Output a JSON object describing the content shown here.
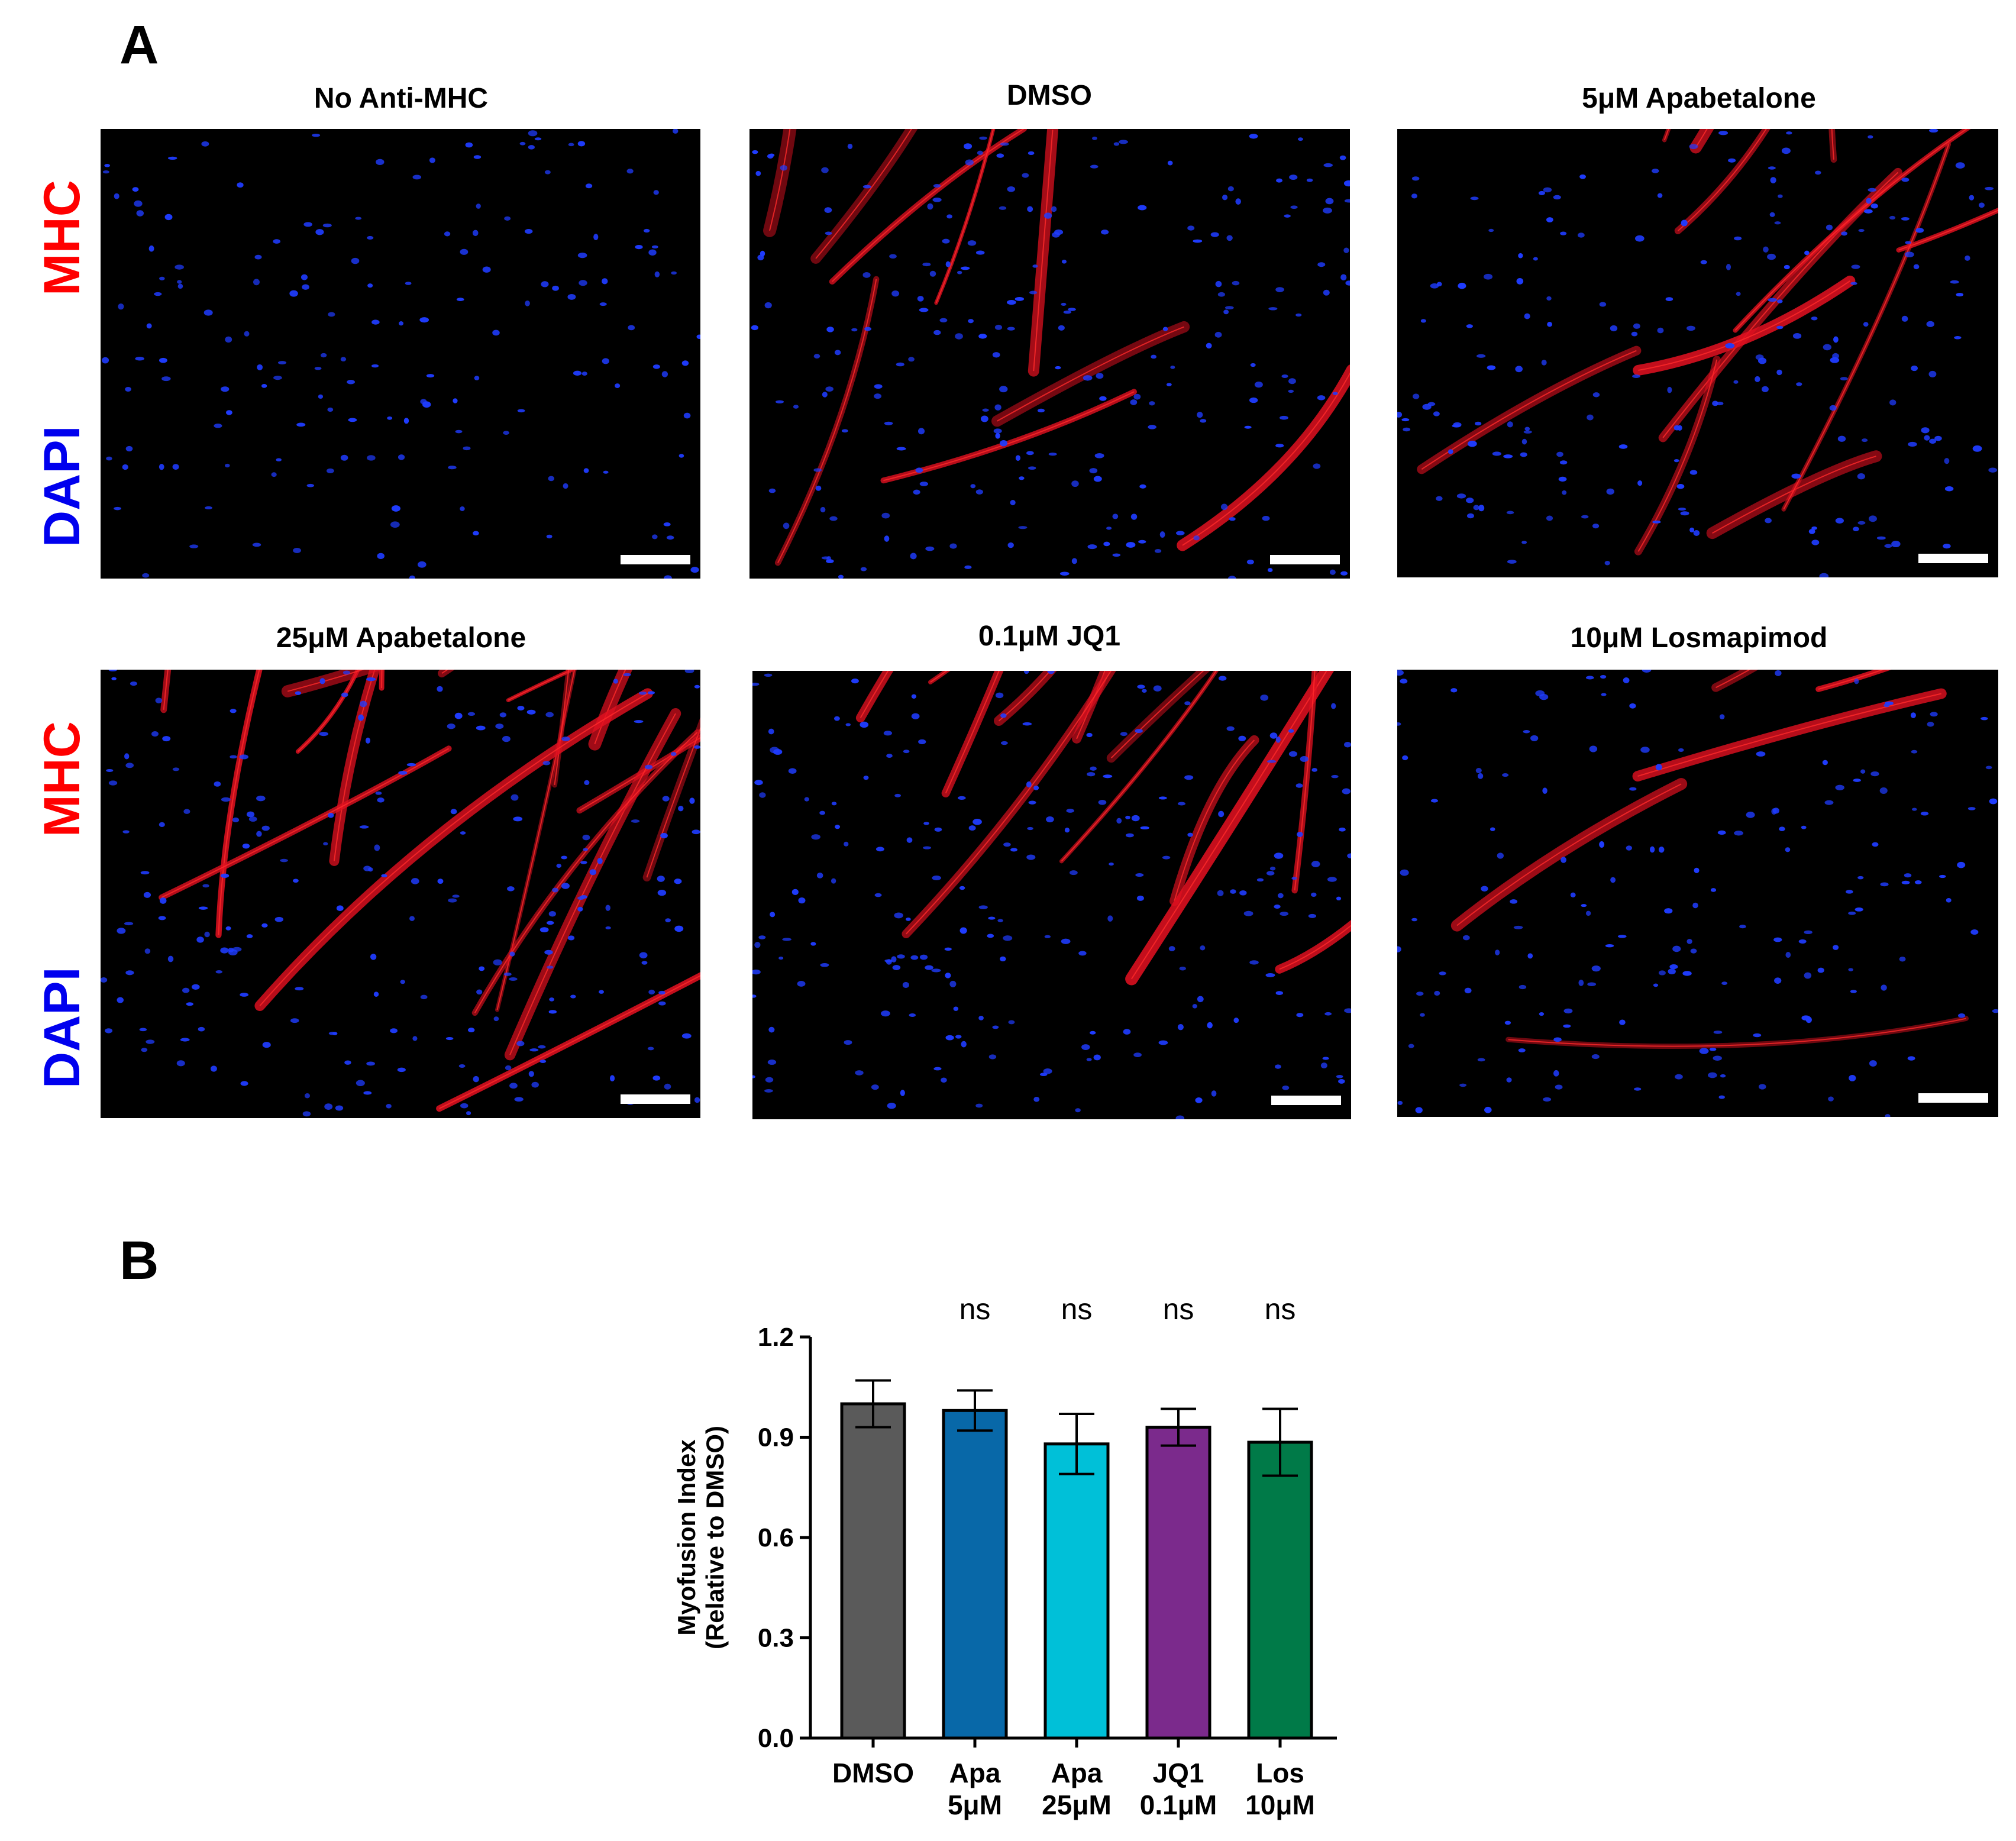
{
  "panel_a": {
    "letter": "A",
    "stain_labels": {
      "mhc": "MHC",
      "dapi": "DAPI"
    },
    "colors": {
      "mhc": "#ff0000",
      "dapi": "#0000ee",
      "nucleus": "#1f3cff",
      "fiber": "#e01020"
    },
    "images": [
      {
        "title": "No Anti-MHC",
        "mhc_level": 0
      },
      {
        "title": "DMSO",
        "mhc_level": 2
      },
      {
        "title": "5μM Apabetalone",
        "mhc_level": 2
      },
      {
        "title": "25μM Apabetalone",
        "mhc_level": 3
      },
      {
        "title": "0.1μM JQ1",
        "mhc_level": 2
      },
      {
        "title": "10μM Losmapimod",
        "mhc_level": 1
      }
    ]
  },
  "panel_b": {
    "letter": "B"
  },
  "chart_data": {
    "type": "bar",
    "categories": [
      "DMSO",
      "Apa 5μM",
      "Apa 25μM",
      "JQ1 0.1μM",
      "Los 10μM"
    ],
    "category_lines": [
      [
        "DMSO"
      ],
      [
        "Apa",
        "5μM"
      ],
      [
        "Apa",
        "25μM"
      ],
      [
        "JQ1",
        "0.1μM"
      ],
      [
        "Los",
        "10μM"
      ]
    ],
    "values": [
      1.0,
      0.98,
      0.88,
      0.93,
      0.885
    ],
    "error": [
      0.07,
      0.06,
      0.09,
      0.055,
      0.1
    ],
    "significance": [
      "",
      "ns",
      "ns",
      "ns",
      "ns"
    ],
    "colors": [
      "#5a5a5a",
      "#0868a8",
      "#00c0d8",
      "#7b2a8c",
      "#007a48"
    ],
    "ylabel_lines": [
      "Myofusion Index",
      "(Relative to DMSO)"
    ],
    "yticks": [
      0.0,
      0.3,
      0.6,
      0.9,
      1.2
    ],
    "ytick_labels": [
      "0.0",
      "0.3",
      "0.6",
      "0.9",
      "1.2"
    ],
    "ylim": [
      0,
      1.2
    ],
    "grid": false,
    "legend": "none"
  }
}
